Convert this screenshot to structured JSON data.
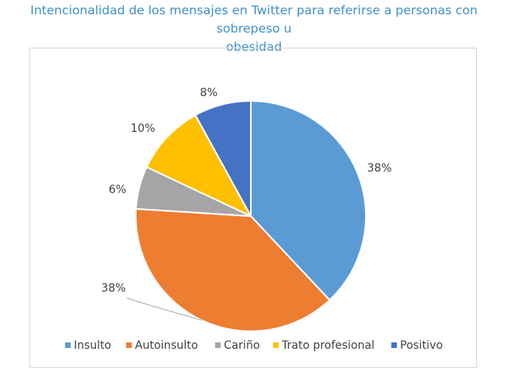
{
  "chart_data": {
    "type": "pie",
    "title": "Intencionalidad de los mensajes en Twitter para referirse a personas con sobrepeso u obesidad",
    "title_lines": [
      "Intencionalidad de los mensajes en Twitter para referirse a personas con sobrepeso u",
      "obesidad"
    ],
    "categories": [
      "Insulto",
      "Autoinsulto",
      "Cariño",
      "Trato profesional",
      "Positivo"
    ],
    "values": [
      38,
      38,
      6,
      10,
      8
    ],
    "value_labels": [
      "38%",
      "38%",
      "6%",
      "10%",
      "8%"
    ],
    "colors": [
      "#5b9bd5",
      "#ed7d31",
      "#a5a5a5",
      "#ffc000",
      "#4472c4"
    ],
    "legend_position": "bottom"
  }
}
